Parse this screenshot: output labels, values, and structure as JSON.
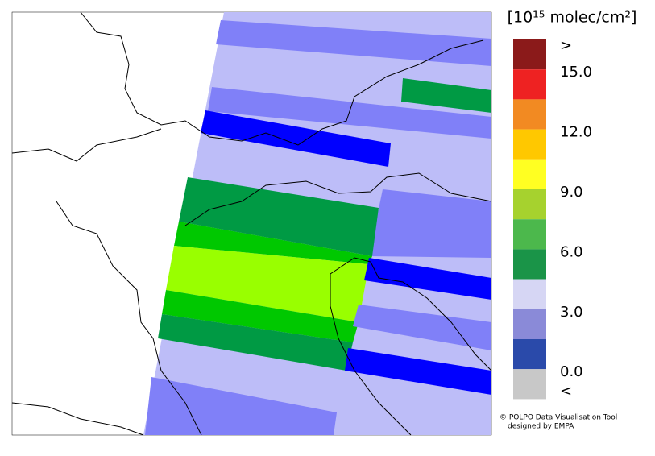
{
  "unit_label": "[10¹⁵ molec/cm²]",
  "colorbar": {
    "colors": [
      "#8b1a1a",
      "#ee2222",
      "#f28a22",
      "#ffc800",
      "#ffff22",
      "#a6d22e",
      "#4cb84c",
      "#1a9448",
      "#d6d6f4",
      "#8a8ad8",
      "#2a4aaa",
      "#c8c8c8"
    ],
    "labels": [
      ">",
      "15.0",
      "12.0",
      "9.0",
      "6.0",
      "3.0",
      "0.0",
      "<"
    ]
  },
  "credits": [
    "© POLPO Data Visualisation Tool",
    "designed by EMPA"
  ]
}
